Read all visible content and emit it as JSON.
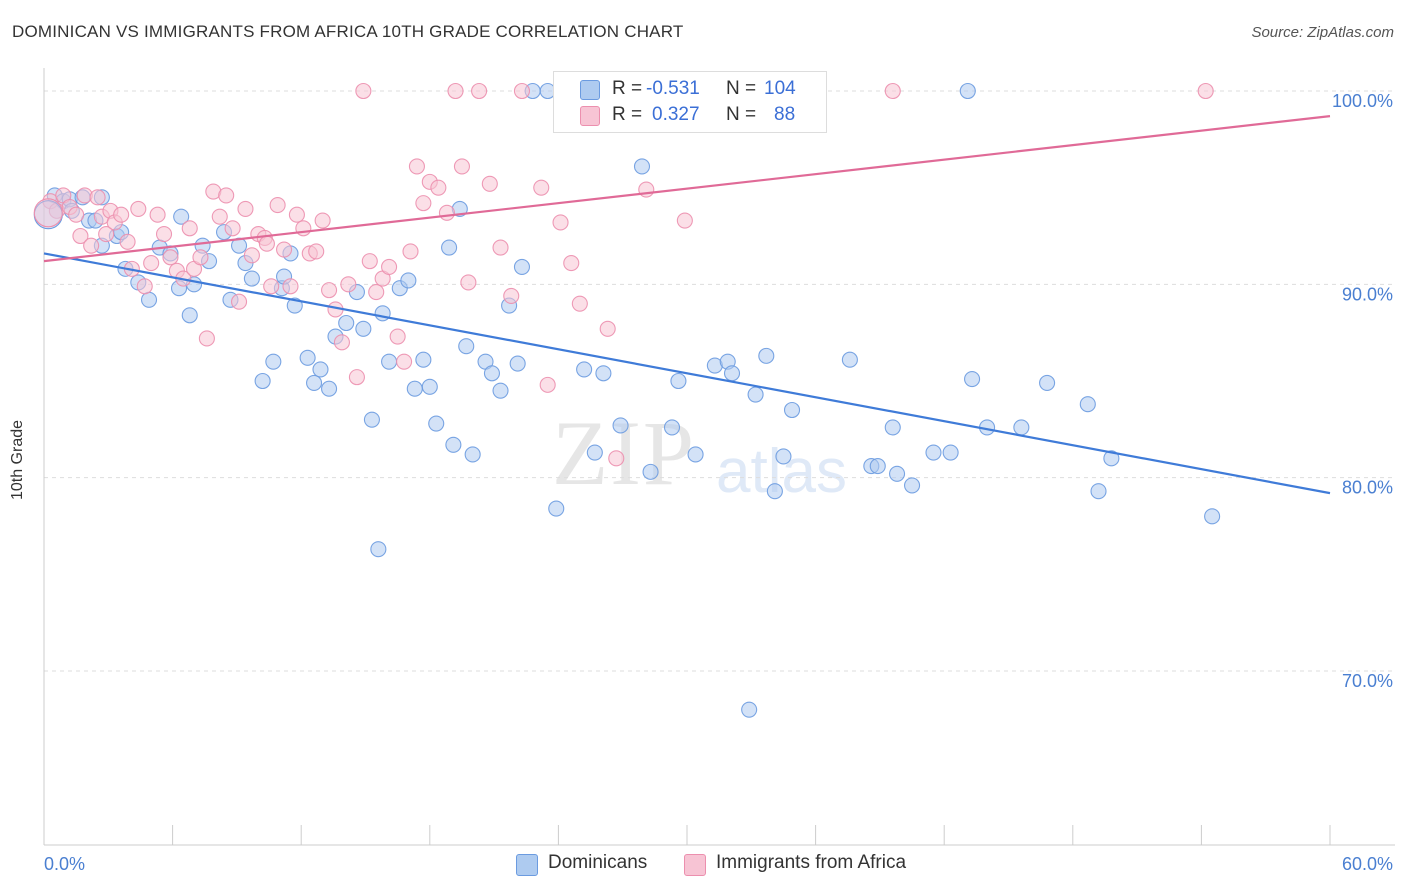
{
  "header": {
    "title": "DOMINICAN VS IMMIGRANTS FROM AFRICA 10TH GRADE CORRELATION CHART",
    "source": "Source: ZipAtlas.com"
  },
  "watermark": {
    "main": "ZIP",
    "sub": "atlas"
  },
  "legend": {
    "r_label": "R =",
    "n_label": "N =",
    "rows": [
      {
        "r": "-0.531",
        "n": "104",
        "color": "#aecbf0",
        "border": "#6b9be0"
      },
      {
        "r": "0.327",
        "n": "88",
        "color": "#f7c4d4",
        "border": "#ec8fae"
      }
    ]
  },
  "bottom_legend": [
    {
      "label": "Dominicans",
      "color": "#aecbf0",
      "border": "#6b9be0"
    },
    {
      "label": "Immigrants from Africa",
      "color": "#f7c4d4",
      "border": "#ec8fae"
    }
  ],
  "chart_data": {
    "type": "scatter",
    "title": "DOMINICAN VS IMMIGRANTS FROM AFRICA 10TH GRADE CORRELATION CHART",
    "xlabel": "",
    "ylabel": "10th Grade",
    "xlim": [
      0,
      60
    ],
    "ylim": [
      61,
      101.5
    ],
    "x_tick_labels": [
      "0.0%",
      "60.0%"
    ],
    "y_ticks": [
      70,
      80,
      90,
      100
    ],
    "y_tick_labels": [
      "70.0%",
      "80.0%",
      "90.0%",
      "100.0%"
    ],
    "grid": true,
    "legend_position": "top-center",
    "series": [
      {
        "name": "Dominicans",
        "color": "#6b9be0",
        "fill": "#aecbf0",
        "trend": {
          "x": [
            0,
            60
          ],
          "y": [
            91.6,
            79.2
          ]
        },
        "points": [
          [
            0.5,
            94.6
          ],
          [
            0.9,
            94.3
          ],
          [
            1.2,
            94.4
          ],
          [
            1.3,
            93.8
          ],
          [
            1.8,
            94.5
          ],
          [
            2.1,
            93.3
          ],
          [
            2.4,
            93.3
          ],
          [
            2.7,
            92.0
          ],
          [
            3.4,
            92.5
          ],
          [
            3.6,
            92.7
          ],
          [
            3.8,
            90.8
          ],
          [
            4.4,
            90.1
          ],
          [
            4.9,
            89.2
          ],
          [
            5.4,
            91.9
          ],
          [
            5.9,
            91.6
          ],
          [
            6.3,
            89.8
          ],
          [
            6.8,
            88.4
          ],
          [
            7.4,
            92.0
          ],
          [
            7.7,
            91.2
          ],
          [
            8.4,
            92.7
          ],
          [
            8.7,
            89.2
          ],
          [
            9.1,
            92.0
          ],
          [
            9.4,
            91.1
          ],
          [
            9.7,
            90.3
          ],
          [
            10.2,
            85.0
          ],
          [
            10.7,
            86.0
          ],
          [
            11.1,
            89.8
          ],
          [
            11.5,
            91.6
          ],
          [
            11.7,
            88.9
          ],
          [
            12.3,
            86.2
          ],
          [
            12.6,
            84.9
          ],
          [
            12.9,
            85.6
          ],
          [
            13.3,
            84.6
          ],
          [
            13.6,
            87.3
          ],
          [
            14.1,
            88.0
          ],
          [
            14.6,
            89.6
          ],
          [
            14.9,
            87.7
          ],
          [
            15.3,
            83.0
          ],
          [
            15.8,
            88.5
          ],
          [
            16.1,
            86.0
          ],
          [
            16.6,
            89.8
          ],
          [
            17.0,
            90.2
          ],
          [
            17.3,
            84.6
          ],
          [
            17.7,
            86.1
          ],
          [
            18.0,
            84.7
          ],
          [
            18.3,
            82.8
          ],
          [
            18.9,
            91.9
          ],
          [
            19.1,
            81.7
          ],
          [
            19.4,
            93.9
          ],
          [
            19.7,
            86.8
          ],
          [
            20.0,
            81.2
          ],
          [
            20.6,
            86.0
          ],
          [
            20.9,
            85.4
          ],
          [
            21.3,
            84.5
          ],
          [
            21.7,
            88.9
          ],
          [
            22.1,
            85.9
          ],
          [
            22.3,
            90.9
          ],
          [
            22.8,
            100.0
          ],
          [
            23.5,
            100.0
          ],
          [
            23.9,
            78.4
          ],
          [
            24.5,
            100.0
          ],
          [
            25.2,
            85.6
          ],
          [
            25.7,
            81.3
          ],
          [
            26.1,
            85.4
          ],
          [
            26.9,
            82.7
          ],
          [
            27.4,
            100.0
          ],
          [
            27.9,
            96.1
          ],
          [
            28.3,
            80.3
          ],
          [
            29.3,
            82.6
          ],
          [
            29.6,
            85.0
          ],
          [
            30.4,
            81.2
          ],
          [
            31.3,
            85.8
          ],
          [
            31.9,
            86.0
          ],
          [
            32.1,
            85.4
          ],
          [
            32.8,
            100.0
          ],
          [
            32.9,
            68.0
          ],
          [
            33.2,
            84.3
          ],
          [
            33.7,
            86.3
          ],
          [
            34.1,
            79.3
          ],
          [
            34.5,
            81.1
          ],
          [
            34.9,
            83.5
          ],
          [
            35.6,
            100.0
          ],
          [
            37.6,
            86.1
          ],
          [
            38.6,
            80.6
          ],
          [
            38.9,
            80.6
          ],
          [
            39.6,
            82.6
          ],
          [
            39.8,
            80.2
          ],
          [
            40.5,
            79.6
          ],
          [
            41.5,
            81.3
          ],
          [
            42.3,
            81.3
          ],
          [
            43.1,
            100.0
          ],
          [
            43.3,
            85.1
          ],
          [
            44.0,
            82.6
          ],
          [
            45.6,
            82.6
          ],
          [
            46.8,
            84.9
          ],
          [
            48.7,
            83.8
          ],
          [
            49.2,
            79.3
          ],
          [
            49.8,
            81.0
          ],
          [
            54.5,
            78.0
          ],
          [
            15.6,
            76.3
          ],
          [
            2.7,
            94.5
          ],
          [
            6.4,
            93.5
          ],
          [
            11.2,
            90.4
          ],
          [
            7.0,
            90.0
          ]
        ]
      },
      {
        "name": "Immigrants from Africa",
        "color": "#ec8fae",
        "fill": "#f7c4d4",
        "trend": {
          "x": [
            0,
            60
          ],
          "y": [
            91.2,
            98.7
          ]
        },
        "points": [
          [
            0.3,
            94.3
          ],
          [
            0.6,
            93.8
          ],
          [
            0.9,
            94.6
          ],
          [
            1.2,
            94.0
          ],
          [
            1.5,
            93.6
          ],
          [
            1.7,
            92.5
          ],
          [
            1.9,
            94.6
          ],
          [
            2.2,
            92.0
          ],
          [
            2.5,
            94.5
          ],
          [
            2.7,
            93.5
          ],
          [
            2.9,
            92.6
          ],
          [
            3.1,
            93.8
          ],
          [
            3.3,
            93.2
          ],
          [
            3.6,
            93.6
          ],
          [
            3.9,
            92.2
          ],
          [
            4.1,
            90.8
          ],
          [
            4.4,
            93.9
          ],
          [
            4.7,
            89.9
          ],
          [
            5.0,
            91.1
          ],
          [
            5.3,
            93.6
          ],
          [
            5.6,
            92.6
          ],
          [
            5.9,
            91.4
          ],
          [
            6.2,
            90.7
          ],
          [
            6.5,
            90.3
          ],
          [
            6.8,
            92.9
          ],
          [
            7.0,
            90.8
          ],
          [
            7.3,
            91.4
          ],
          [
            7.6,
            87.2
          ],
          [
            7.9,
            94.8
          ],
          [
            8.2,
            93.5
          ],
          [
            8.5,
            94.6
          ],
          [
            8.8,
            92.9
          ],
          [
            9.1,
            89.1
          ],
          [
            9.4,
            93.9
          ],
          [
            9.7,
            91.5
          ],
          [
            10.0,
            92.6
          ],
          [
            10.3,
            92.4
          ],
          [
            10.6,
            89.9
          ],
          [
            10.9,
            94.1
          ],
          [
            11.2,
            91.8
          ],
          [
            11.5,
            89.9
          ],
          [
            11.8,
            93.6
          ],
          [
            12.1,
            92.9
          ],
          [
            12.4,
            91.6
          ],
          [
            12.7,
            91.7
          ],
          [
            13.0,
            93.3
          ],
          [
            13.3,
            89.7
          ],
          [
            13.6,
            88.7
          ],
          [
            13.9,
            87.0
          ],
          [
            14.2,
            90.0
          ],
          [
            14.6,
            85.2
          ],
          [
            14.9,
            100.0
          ],
          [
            15.2,
            91.2
          ],
          [
            15.5,
            89.6
          ],
          [
            15.8,
            90.3
          ],
          [
            16.1,
            90.9
          ],
          [
            16.5,
            87.3
          ],
          [
            16.8,
            86.0
          ],
          [
            17.1,
            91.7
          ],
          [
            17.4,
            96.1
          ],
          [
            17.7,
            94.2
          ],
          [
            18.0,
            95.3
          ],
          [
            18.4,
            95.0
          ],
          [
            18.8,
            93.7
          ],
          [
            19.2,
            100.0
          ],
          [
            19.5,
            96.1
          ],
          [
            19.8,
            90.1
          ],
          [
            20.3,
            100.0
          ],
          [
            20.8,
            95.2
          ],
          [
            21.3,
            91.9
          ],
          [
            21.8,
            89.4
          ],
          [
            22.3,
            100.0
          ],
          [
            23.2,
            95.0
          ],
          [
            23.5,
            84.8
          ],
          [
            24.1,
            93.2
          ],
          [
            24.6,
            91.1
          ],
          [
            25.0,
            89.0
          ],
          [
            25.5,
            100.0
          ],
          [
            26.3,
            87.7
          ],
          [
            26.7,
            81.0
          ],
          [
            28.1,
            94.9
          ],
          [
            29.9,
            93.3
          ],
          [
            30.3,
            100.0
          ],
          [
            34.5,
            100.0
          ],
          [
            36.0,
            100.0
          ],
          [
            39.6,
            100.0
          ],
          [
            54.2,
            100.0
          ],
          [
            10.4,
            92.1
          ]
        ]
      }
    ],
    "big_points": [
      {
        "series": "Dominicans",
        "x": 0.2,
        "y": 93.6
      },
      {
        "series": "Immigrants from Africa",
        "x": 0.2,
        "y": 93.7
      }
    ]
  }
}
